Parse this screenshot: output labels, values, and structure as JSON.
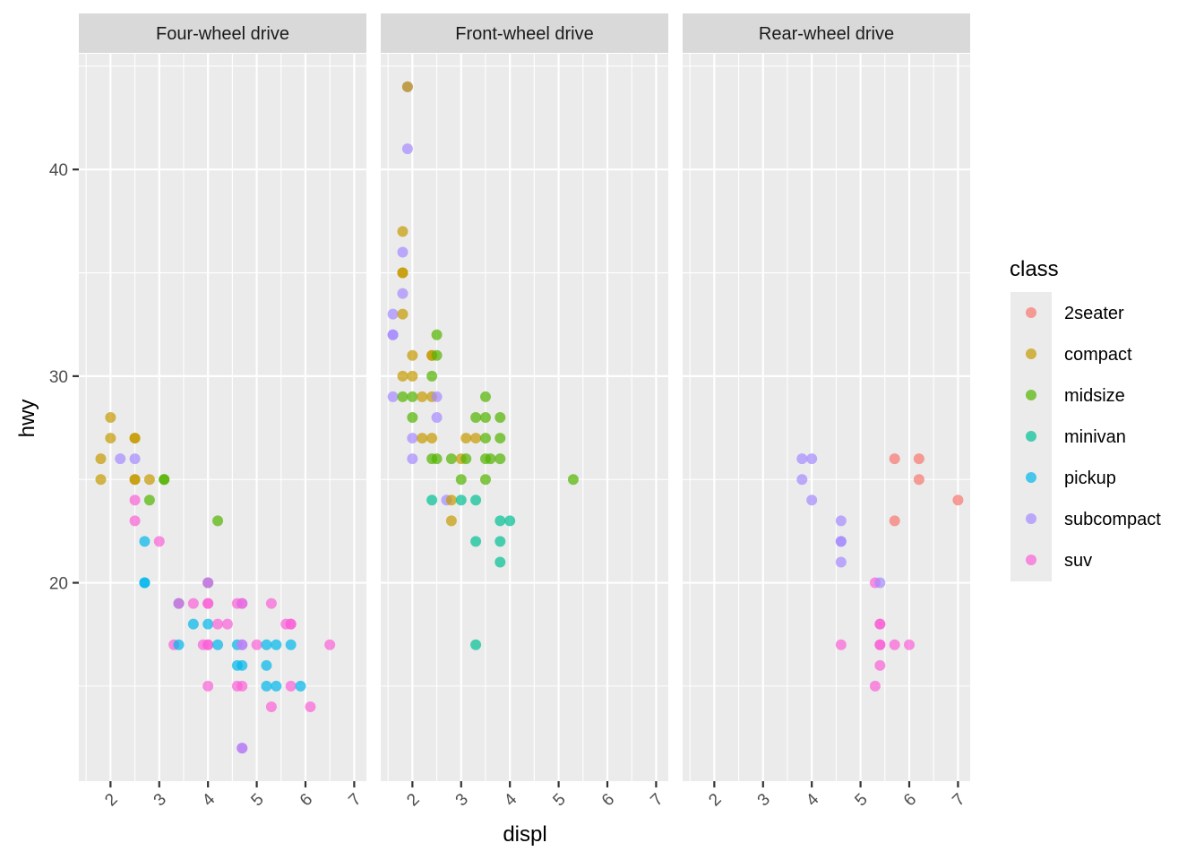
{
  "chart_data": {
    "type": "scatter",
    "xlabel": "displ",
    "ylabel": "hwy",
    "xlim": [
      1.35,
      7.25
    ],
    "ylim": [
      10.4,
      45.6
    ],
    "x_ticks": [
      "2",
      "3",
      "4",
      "5",
      "6",
      "7"
    ],
    "y_ticks": [
      "20",
      "30",
      "40"
    ],
    "grid": true,
    "legend": {
      "title": "class",
      "position": "right",
      "entries": [
        {
          "label": "2seater",
          "color": "#F8766D"
        },
        {
          "label": "compact",
          "color": "#C49A00"
        },
        {
          "label": "midsize",
          "color": "#53B400"
        },
        {
          "label": "minivan",
          "color": "#00C094"
        },
        {
          "label": "pickup",
          "color": "#00B6EB"
        },
        {
          "label": "subcompact",
          "color": "#A58AFF"
        },
        {
          "label": "suv",
          "color": "#FB61D7"
        }
      ]
    },
    "panels": [
      {
        "title": "Four-wheel drive",
        "points": [
          {
            "x": 1.8,
            "y": 26,
            "c": "compact"
          },
          {
            "x": 1.8,
            "y": 25,
            "c": "compact"
          },
          {
            "x": 2.0,
            "y": 28,
            "c": "compact"
          },
          {
            "x": 2.0,
            "y": 27,
            "c": "compact"
          },
          {
            "x": 2.5,
            "y": 27,
            "c": "compact"
          },
          {
            "x": 2.5,
            "y": 27,
            "c": "compact"
          },
          {
            "x": 2.5,
            "y": 25,
            "c": "compact"
          },
          {
            "x": 2.5,
            "y": 25,
            "c": "compact"
          },
          {
            "x": 2.8,
            "y": 25,
            "c": "compact"
          },
          {
            "x": 2.2,
            "y": 26,
            "c": "subcompact"
          },
          {
            "x": 2.5,
            "y": 26,
            "c": "subcompact"
          },
          {
            "x": 3.1,
            "y": 25,
            "c": "midsize"
          },
          {
            "x": 3.1,
            "y": 25,
            "c": "midsize"
          },
          {
            "x": 2.8,
            "y": 24,
            "c": "midsize"
          },
          {
            "x": 4.2,
            "y": 23,
            "c": "midsize"
          },
          {
            "x": 2.5,
            "y": 24,
            "c": "suv"
          },
          {
            "x": 2.5,
            "y": 23,
            "c": "suv"
          },
          {
            "x": 3.0,
            "y": 22,
            "c": "suv"
          },
          {
            "x": 2.7,
            "y": 22,
            "c": "pickup"
          },
          {
            "x": 2.7,
            "y": 20,
            "c": "pickup"
          },
          {
            "x": 2.7,
            "y": 20,
            "c": "pickup"
          },
          {
            "x": 4.0,
            "y": 20,
            "c": "pickup"
          },
          {
            "x": 4.0,
            "y": 20,
            "c": "suv"
          },
          {
            "x": 3.4,
            "y": 19,
            "c": "pickup"
          },
          {
            "x": 3.4,
            "y": 19,
            "c": "suv"
          },
          {
            "x": 3.7,
            "y": 19,
            "c": "suv"
          },
          {
            "x": 4.0,
            "y": 19,
            "c": "suv"
          },
          {
            "x": 4.0,
            "y": 19,
            "c": "suv"
          },
          {
            "x": 4.6,
            "y": 19,
            "c": "suv"
          },
          {
            "x": 4.7,
            "y": 19,
            "c": "subcompact"
          },
          {
            "x": 4.7,
            "y": 19,
            "c": "suv"
          },
          {
            "x": 5.3,
            "y": 19,
            "c": "suv"
          },
          {
            "x": 3.7,
            "y": 18,
            "c": "pickup"
          },
          {
            "x": 4.0,
            "y": 18,
            "c": "pickup"
          },
          {
            "x": 4.2,
            "y": 18,
            "c": "suv"
          },
          {
            "x": 4.4,
            "y": 18,
            "c": "suv"
          },
          {
            "x": 5.6,
            "y": 18,
            "c": "suv"
          },
          {
            "x": 5.7,
            "y": 18,
            "c": "suv"
          },
          {
            "x": 5.7,
            "y": 18,
            "c": "suv"
          },
          {
            "x": 3.3,
            "y": 17,
            "c": "suv"
          },
          {
            "x": 3.4,
            "y": 17,
            "c": "pickup"
          },
          {
            "x": 3.9,
            "y": 17,
            "c": "suv"
          },
          {
            "x": 4.0,
            "y": 17,
            "c": "suv"
          },
          {
            "x": 4.0,
            "y": 17,
            "c": "suv"
          },
          {
            "x": 4.2,
            "y": 17,
            "c": "pickup"
          },
          {
            "x": 4.6,
            "y": 17,
            "c": "pickup"
          },
          {
            "x": 4.7,
            "y": 17,
            "c": "suv"
          },
          {
            "x": 4.7,
            "y": 17,
            "c": "subcompact"
          },
          {
            "x": 5.0,
            "y": 17,
            "c": "suv"
          },
          {
            "x": 5.2,
            "y": 17,
            "c": "pickup"
          },
          {
            "x": 5.4,
            "y": 17,
            "c": "pickup"
          },
          {
            "x": 5.7,
            "y": 17,
            "c": "pickup"
          },
          {
            "x": 6.5,
            "y": 17,
            "c": "suv"
          },
          {
            "x": 4.6,
            "y": 16,
            "c": "pickup"
          },
          {
            "x": 4.7,
            "y": 16,
            "c": "pickup"
          },
          {
            "x": 5.2,
            "y": 16,
            "c": "pickup"
          },
          {
            "x": 4.0,
            "y": 15,
            "c": "suv"
          },
          {
            "x": 4.6,
            "y": 15,
            "c": "suv"
          },
          {
            "x": 4.7,
            "y": 15,
            "c": "suv"
          },
          {
            "x": 5.2,
            "y": 15,
            "c": "pickup"
          },
          {
            "x": 5.4,
            "y": 15,
            "c": "pickup"
          },
          {
            "x": 5.7,
            "y": 15,
            "c": "suv"
          },
          {
            "x": 5.9,
            "y": 15,
            "c": "pickup"
          },
          {
            "x": 5.3,
            "y": 14,
            "c": "suv"
          },
          {
            "x": 6.1,
            "y": 14,
            "c": "suv"
          },
          {
            "x": 4.7,
            "y": 12,
            "c": "suv"
          },
          {
            "x": 4.7,
            "y": 12,
            "c": "subcompact"
          }
        ]
      },
      {
        "title": "Front-wheel drive",
        "points": [
          {
            "x": 1.9,
            "y": 44,
            "c": "subcompact"
          },
          {
            "x": 1.9,
            "y": 44,
            "c": "compact"
          },
          {
            "x": 1.9,
            "y": 41,
            "c": "subcompact"
          },
          {
            "x": 1.8,
            "y": 37,
            "c": "compact"
          },
          {
            "x": 1.8,
            "y": 36,
            "c": "subcompact"
          },
          {
            "x": 1.8,
            "y": 35,
            "c": "compact"
          },
          {
            "x": 1.8,
            "y": 35,
            "c": "compact"
          },
          {
            "x": 1.8,
            "y": 34,
            "c": "subcompact"
          },
          {
            "x": 1.6,
            "y": 33,
            "c": "subcompact"
          },
          {
            "x": 1.8,
            "y": 33,
            "c": "compact"
          },
          {
            "x": 1.6,
            "y": 32,
            "c": "subcompact"
          },
          {
            "x": 1.6,
            "y": 32,
            "c": "subcompact"
          },
          {
            "x": 2.5,
            "y": 32,
            "c": "midsize"
          },
          {
            "x": 2.0,
            "y": 31,
            "c": "compact"
          },
          {
            "x": 2.4,
            "y": 31,
            "c": "compact"
          },
          {
            "x": 2.4,
            "y": 31,
            "c": "compact"
          },
          {
            "x": 2.5,
            "y": 31,
            "c": "midsize"
          },
          {
            "x": 1.8,
            "y": 30,
            "c": "compact"
          },
          {
            "x": 2.0,
            "y": 30,
            "c": "compact"
          },
          {
            "x": 2.4,
            "y": 30,
            "c": "midsize"
          },
          {
            "x": 1.6,
            "y": 29,
            "c": "subcompact"
          },
          {
            "x": 1.8,
            "y": 29,
            "c": "midsize"
          },
          {
            "x": 2.0,
            "y": 29,
            "c": "midsize"
          },
          {
            "x": 2.2,
            "y": 29,
            "c": "compact"
          },
          {
            "x": 2.4,
            "y": 29,
            "c": "compact"
          },
          {
            "x": 2.5,
            "y": 29,
            "c": "subcompact"
          },
          {
            "x": 3.5,
            "y": 29,
            "c": "midsize"
          },
          {
            "x": 2.0,
            "y": 28,
            "c": "midsize"
          },
          {
            "x": 2.5,
            "y": 28,
            "c": "subcompact"
          },
          {
            "x": 3.3,
            "y": 28,
            "c": "midsize"
          },
          {
            "x": 3.5,
            "y": 28,
            "c": "midsize"
          },
          {
            "x": 3.8,
            "y": 28,
            "c": "midsize"
          },
          {
            "x": 2.0,
            "y": 27,
            "c": "subcompact"
          },
          {
            "x": 2.2,
            "y": 27,
            "c": "compact"
          },
          {
            "x": 2.4,
            "y": 27,
            "c": "compact"
          },
          {
            "x": 3.1,
            "y": 27,
            "c": "compact"
          },
          {
            "x": 3.3,
            "y": 27,
            "c": "compact"
          },
          {
            "x": 3.5,
            "y": 27,
            "c": "midsize"
          },
          {
            "x": 3.8,
            "y": 27,
            "c": "midsize"
          },
          {
            "x": 2.0,
            "y": 26,
            "c": "subcompact"
          },
          {
            "x": 2.4,
            "y": 26,
            "c": "midsize"
          },
          {
            "x": 2.5,
            "y": 26,
            "c": "midsize"
          },
          {
            "x": 2.8,
            "y": 26,
            "c": "midsize"
          },
          {
            "x": 3.0,
            "y": 26,
            "c": "compact"
          },
          {
            "x": 3.1,
            "y": 26,
            "c": "midsize"
          },
          {
            "x": 3.5,
            "y": 26,
            "c": "midsize"
          },
          {
            "x": 3.6,
            "y": 26,
            "c": "midsize"
          },
          {
            "x": 3.8,
            "y": 26,
            "c": "midsize"
          },
          {
            "x": 3.0,
            "y": 25,
            "c": "midsize"
          },
          {
            "x": 3.5,
            "y": 25,
            "c": "midsize"
          },
          {
            "x": 5.3,
            "y": 25,
            "c": "midsize"
          },
          {
            "x": 2.4,
            "y": 24,
            "c": "minivan"
          },
          {
            "x": 2.7,
            "y": 24,
            "c": "subcompact"
          },
          {
            "x": 2.8,
            "y": 24,
            "c": "compact"
          },
          {
            "x": 3.0,
            "y": 24,
            "c": "minivan"
          },
          {
            "x": 3.3,
            "y": 24,
            "c": "minivan"
          },
          {
            "x": 2.8,
            "y": 23,
            "c": "compact"
          },
          {
            "x": 3.8,
            "y": 23,
            "c": "minivan"
          },
          {
            "x": 4.0,
            "y": 23,
            "c": "minivan"
          },
          {
            "x": 3.3,
            "y": 22,
            "c": "minivan"
          },
          {
            "x": 3.8,
            "y": 22,
            "c": "minivan"
          },
          {
            "x": 3.8,
            "y": 21,
            "c": "minivan"
          },
          {
            "x": 3.3,
            "y": 17,
            "c": "minivan"
          }
        ]
      },
      {
        "title": "Rear-wheel drive",
        "points": [
          {
            "x": 3.8,
            "y": 26,
            "c": "subcompact"
          },
          {
            "x": 4.0,
            "y": 26,
            "c": "subcompact"
          },
          {
            "x": 5.7,
            "y": 26,
            "c": "2seater"
          },
          {
            "x": 6.2,
            "y": 26,
            "c": "2seater"
          },
          {
            "x": 3.8,
            "y": 25,
            "c": "subcompact"
          },
          {
            "x": 6.2,
            "y": 25,
            "c": "2seater"
          },
          {
            "x": 4.0,
            "y": 24,
            "c": "subcompact"
          },
          {
            "x": 7.0,
            "y": 24,
            "c": "2seater"
          },
          {
            "x": 4.6,
            "y": 23,
            "c": "subcompact"
          },
          {
            "x": 5.7,
            "y": 23,
            "c": "2seater"
          },
          {
            "x": 4.6,
            "y": 22,
            "c": "subcompact"
          },
          {
            "x": 4.6,
            "y": 22,
            "c": "subcompact"
          },
          {
            "x": 4.6,
            "y": 21,
            "c": "subcompact"
          },
          {
            "x": 5.3,
            "y": 20,
            "c": "suv"
          },
          {
            "x": 5.4,
            "y": 20,
            "c": "subcompact"
          },
          {
            "x": 5.4,
            "y": 18,
            "c": "suv"
          },
          {
            "x": 5.4,
            "y": 18,
            "c": "suv"
          },
          {
            "x": 4.6,
            "y": 17,
            "c": "suv"
          },
          {
            "x": 5.4,
            "y": 17,
            "c": "suv"
          },
          {
            "x": 5.4,
            "y": 17,
            "c": "suv"
          },
          {
            "x": 5.7,
            "y": 17,
            "c": "suv"
          },
          {
            "x": 6.0,
            "y": 17,
            "c": "suv"
          },
          {
            "x": 5.4,
            "y": 16,
            "c": "suv"
          },
          {
            "x": 5.3,
            "y": 15,
            "c": "suv"
          }
        ]
      }
    ]
  }
}
